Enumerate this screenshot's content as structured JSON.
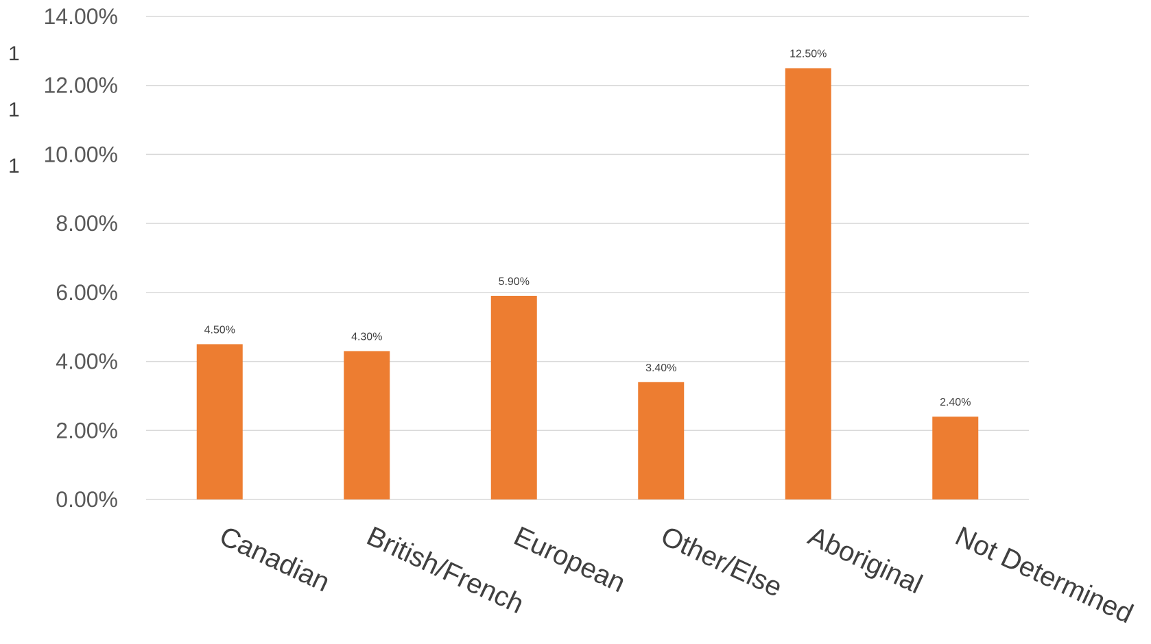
{
  "chart_data": {
    "type": "bar",
    "categories": [
      "Canadian",
      "British/French",
      "European",
      "Other/Else",
      "Aboriginal",
      "Not Determined"
    ],
    "values": [
      4.5,
      4.3,
      5.9,
      3.4,
      12.5,
      2.4
    ],
    "data_labels": [
      "4.50%",
      "4.30%",
      "5.90%",
      "3.40%",
      "12.50%",
      "2.40%"
    ],
    "y_ticks": [
      0,
      2,
      4,
      6,
      8,
      10,
      12,
      14
    ],
    "y_tick_labels": [
      "0.00%",
      "2.00%",
      "4.00%",
      "6.00%",
      "8.00%",
      "10.00%",
      "12.00%",
      "14.00%"
    ],
    "ylim": [
      0,
      14
    ],
    "stray_axis_labels": [
      "1",
      "1",
      "1"
    ],
    "title": "",
    "xlabel": "",
    "ylabel": "",
    "grid": true,
    "legend": "none",
    "bar_color": "#ED7D31"
  }
}
